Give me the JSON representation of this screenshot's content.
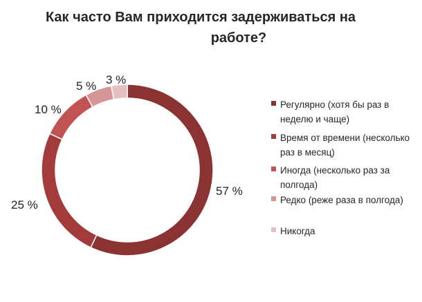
{
  "chart_data": {
    "type": "pie",
    "variant": "donut",
    "title_lines": [
      "Как часто Вам приходится задерживаться на",
      "работе?"
    ],
    "series": [
      {
        "name": "Регулярно (хотя бы раз в неделю и чаще)",
        "value": 57,
        "label": "57 %",
        "color": "#8b3333"
      },
      {
        "name": "Время от времени (несколько раз в месяц)",
        "value": 25,
        "label": "25 %",
        "color": "#a33b3b"
      },
      {
        "name": "Иногда (несколько раз за полгода)",
        "value": 10,
        "label": "10 %",
        "color": "#c25353"
      },
      {
        "name": "Редко (реже раза в полгода)",
        "value": 5,
        "label": "5 %",
        "color": "#d69494"
      },
      {
        "name": "Никогда",
        "value": 3,
        "label": "3 %",
        "color": "#e6c0c0"
      }
    ],
    "legend_position": "right"
  }
}
